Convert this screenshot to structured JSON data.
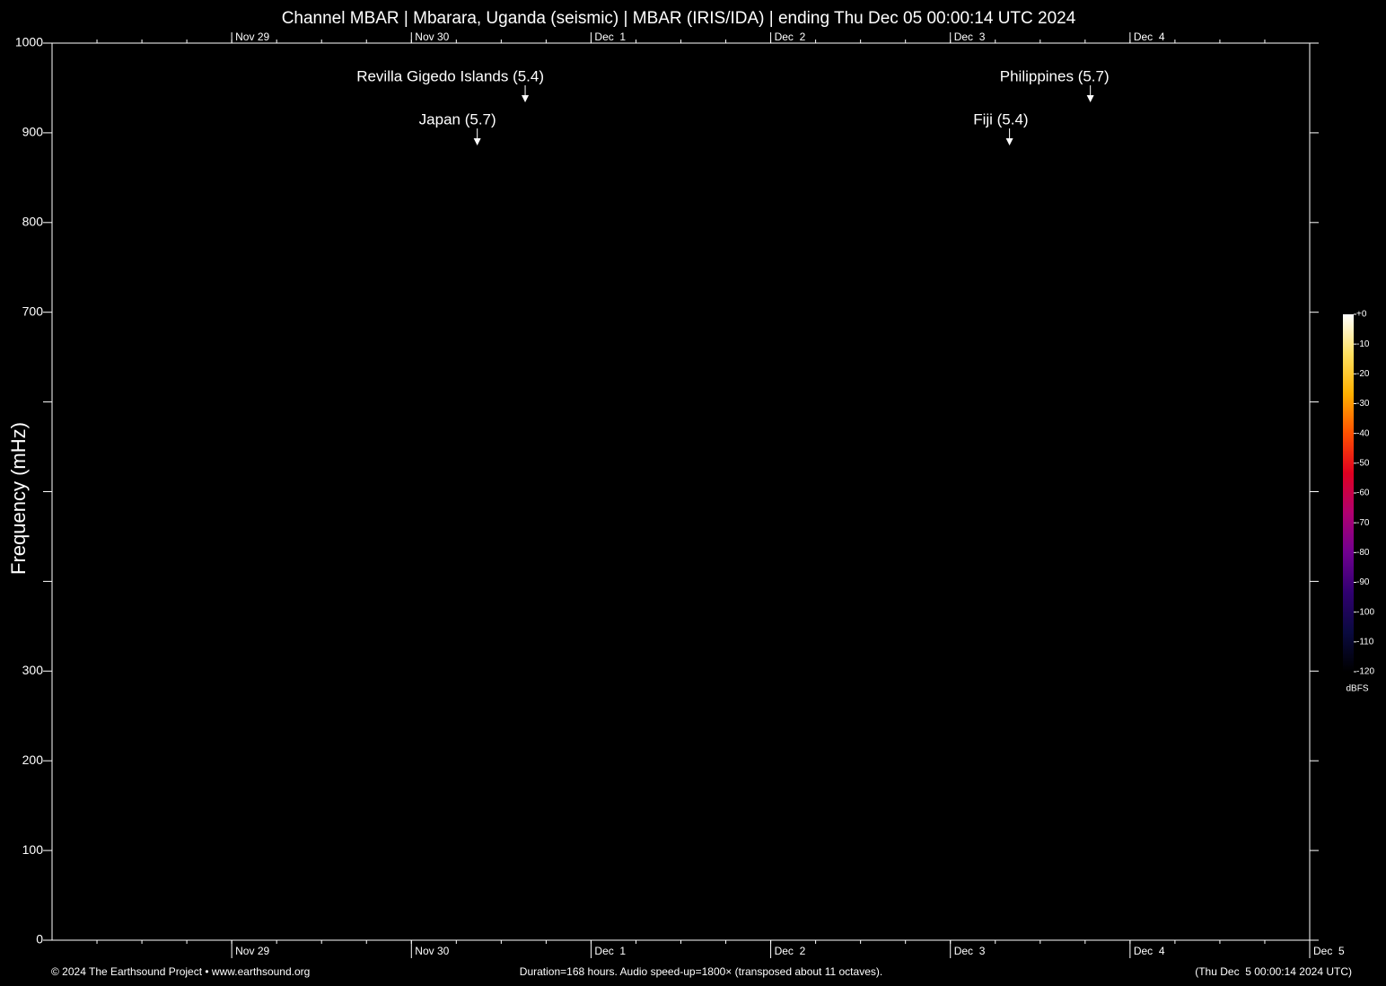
{
  "chart_data": {
    "type": "spectrogram",
    "title": "Channel MBAR | Mbarara, Uganda (seismic) | MBAR (IRIS/IDA) | ending Thu Dec 05 00:00:14 UTC 2024",
    "y_label": "Frequency (mHz)",
    "xlim": [
      0,
      168
    ],
    "xticks": [
      {
        "value": 24,
        "label": "Nov 29"
      },
      {
        "value": 48,
        "label": "Nov 30"
      },
      {
        "value": 72,
        "label": "Dec  1"
      },
      {
        "value": 96,
        "label": "Dec  2"
      },
      {
        "value": 120,
        "label": "Dec  3"
      },
      {
        "value": 144,
        "label": "Dec  4"
      },
      {
        "value": 168,
        "label": "Dec  5"
      }
    ],
    "x_minor_step": 6,
    "ylim": [
      0,
      1000
    ],
    "yticks": [
      0,
      100,
      200,
      300,
      {
        "value": 400,
        "label": null
      },
      {
        "value": 500,
        "label": null
      },
      {
        "value": 600,
        "label": null
      },
      700,
      800,
      900,
      1000
    ],
    "events": [
      {
        "label": "Japan (5.7)",
        "x": 56.8
      },
      {
        "label": "Revilla Gigedo Islands (5.4)",
        "x": 63.2
      },
      {
        "label": "Fiji (5.4)",
        "x": 127.9
      },
      {
        "label": "Philippines (5.7)",
        "x": 138.7
      }
    ],
    "colorbar": {
      "unit": "dBFS",
      "lim": [
        -120,
        0
      ],
      "ticks": [
        {
          "value": 0,
          "label": "+0"
        },
        -10,
        -20,
        -30,
        -40,
        -50,
        -60,
        -70,
        -80,
        -90,
        -100,
        -110,
        -120
      ],
      "colormap": [
        "#000000",
        "#0a0a40",
        "#300070",
        "#700090",
        "#b00070",
        "#e00020",
        "#ff5000",
        "#ffb000",
        "#ffe060",
        "#ffffff"
      ]
    },
    "footer_left": "© 2024 The Earthsound Project • www.earthsound.org",
    "footer_center": "Duration=168 hours. Audio speed-up=1800× (transposed about 11 octaves).",
    "footer_right": "(Thu Dec  5 00:00:14 2024 UTC)"
  }
}
